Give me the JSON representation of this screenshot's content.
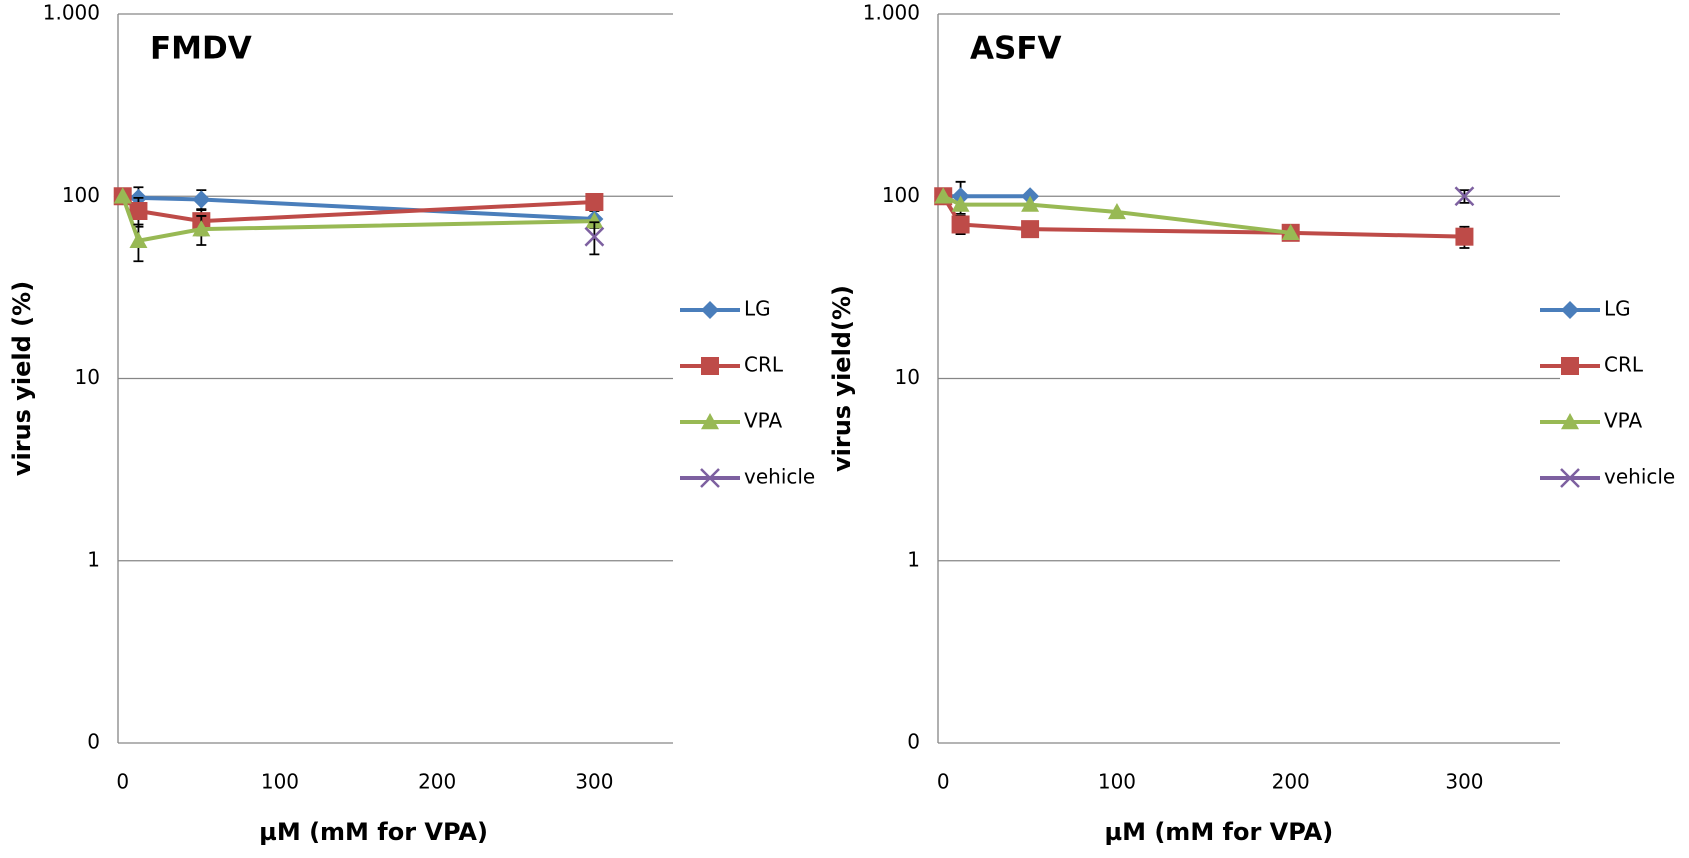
{
  "chart_data": [
    {
      "type": "line",
      "title": "FMDV",
      "x_label": "µM (mM for VPA)",
      "y_label": "virus yield (%)",
      "log_y": true,
      "grid": true,
      "legend": "right",
      "xlim": [
        -3,
        350
      ],
      "xticks": [
        0,
        100,
        200,
        300
      ],
      "ylim": [
        0.1,
        1000
      ],
      "yticks": [
        {
          "value": 0.1,
          "label": "0"
        },
        1,
        10,
        100,
        {
          "value": 1000,
          "label": "1.000"
        }
      ],
      "series": [
        {
          "name": "LG",
          "color": "#4a7ebb",
          "marker": "diamond",
          "x": [
            0,
            10,
            50,
            300
          ],
          "values": [
            100,
            98,
            96,
            75
          ],
          "errors": [
            null,
            14,
            12,
            8
          ]
        },
        {
          "name": "CRL",
          "color": "#be4b48",
          "marker": "square",
          "x": [
            0,
            10,
            50,
            300
          ],
          "values": [
            100,
            83,
            73,
            93
          ],
          "errors": [
            null,
            15,
            12,
            null
          ]
        },
        {
          "name": "VPA",
          "color": "#98b954",
          "marker": "triangle",
          "x": [
            0,
            10,
            50,
            300
          ],
          "values": [
            100,
            57,
            66,
            73
          ],
          "errors": [
            null,
            13,
            12,
            null
          ]
        },
        {
          "name": "vehicle",
          "color": "#7d60a0",
          "marker": "x",
          "x": [
            300
          ],
          "values": [
            60
          ],
          "errors": [
            12
          ]
        }
      ]
    },
    {
      "type": "line",
      "title": "ASFV",
      "x_label": "µM (mM for VPA)",
      "y_label": "virus yield(%)",
      "log_y": true,
      "grid": true,
      "legend": "right",
      "xlim": [
        -3,
        355
      ],
      "xticks": [
        0,
        100,
        200,
        300
      ],
      "ylim": [
        0.1,
        1000
      ],
      "yticks": [
        {
          "value": 0.1,
          "label": "0"
        },
        1,
        10,
        100,
        {
          "value": 1000,
          "label": "1.000"
        }
      ],
      "series": [
        {
          "name": "LG",
          "color": "#4a7ebb",
          "marker": "diamond",
          "x": [
            0,
            10,
            50
          ],
          "values": [
            100,
            100,
            100
          ],
          "errors": [
            null,
            20,
            null
          ]
        },
        {
          "name": "CRL",
          "color": "#be4b48",
          "marker": "square",
          "x": [
            0,
            10,
            50,
            200,
            300
          ],
          "values": [
            100,
            70,
            66,
            63,
            60
          ],
          "errors": [
            null,
            8,
            null,
            null,
            8
          ]
        },
        {
          "name": "VPA",
          "color": "#98b954",
          "marker": "triangle",
          "x": [
            0,
            10,
            50,
            100,
            200
          ],
          "values": [
            100,
            90,
            90,
            82,
            63
          ],
          "errors": [
            null,
            null,
            null,
            null,
            null
          ]
        },
        {
          "name": "vehicle",
          "color": "#7d60a0",
          "marker": "x",
          "x": [
            300
          ],
          "values": [
            100
          ],
          "errors": [
            8
          ]
        }
      ]
    }
  ]
}
